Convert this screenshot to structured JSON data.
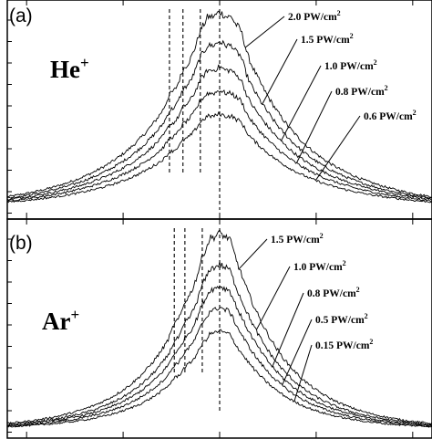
{
  "chart_data": [
    {
      "type": "line",
      "panel_label": "(a)",
      "ion_label": "He",
      "ion_charge": "+",
      "series": [
        {
          "name_value": "2.0",
          "name_unit": "PW/cm",
          "name_exp": "2",
          "peak": 1.0
        },
        {
          "name_value": "1.5",
          "name_unit": "PW/cm",
          "name_exp": "2",
          "peak": 0.85
        },
        {
          "name_value": "1.0",
          "name_unit": "PW/cm",
          "name_exp": "2",
          "peak": 0.72
        },
        {
          "name_value": "0.8",
          "name_unit": "PW/cm",
          "name_exp": "2",
          "peak": 0.6
        },
        {
          "name_value": "0.6",
          "name_unit": "PW/cm",
          "name_exp": "2",
          "peak": 0.48
        }
      ],
      "marker_lines_x": [
        -0.52,
        -0.38,
        -0.2,
        0.0
      ],
      "xlim": [
        -2.2,
        2.2
      ],
      "ylim": [
        0,
        1.05
      ]
    },
    {
      "type": "line",
      "panel_label": "(b)",
      "ion_label": "Ar",
      "ion_charge": "+",
      "series": [
        {
          "name_value": "1.5",
          "name_unit": "PW/cm",
          "name_exp": "2",
          "peak": 1.0
        },
        {
          "name_value": "1.0",
          "name_unit": "PW/cm",
          "name_exp": "2",
          "peak": 0.84
        },
        {
          "name_value": "0.8",
          "name_unit": "PW/cm",
          "name_exp": "2",
          "peak": 0.73
        },
        {
          "name_value": "0.5",
          "name_unit": "PW/cm",
          "name_exp": "2",
          "peak": 0.62
        },
        {
          "name_value": "0.15",
          "name_unit": "PW/cm",
          "name_exp": "2",
          "peak": 0.5
        }
      ],
      "marker_lines_x": [
        -0.47,
        -0.36,
        -0.18,
        0.0
      ],
      "xlim": [
        -2.2,
        2.2
      ],
      "ylim": [
        0,
        1.05
      ]
    }
  ]
}
